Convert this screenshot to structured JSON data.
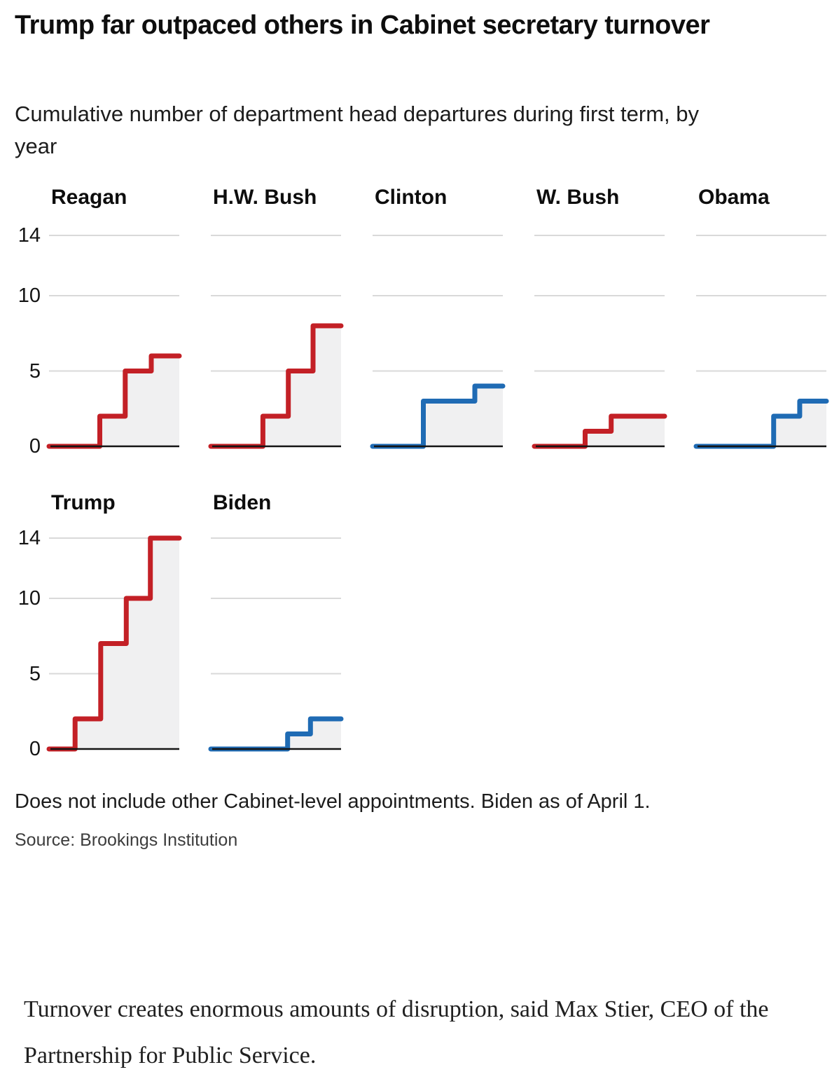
{
  "article": {
    "quote": "Turnover creates enormous amounts of disruption, said Max Stier, CEO of the Partnership for Public Service."
  },
  "chart_data": {
    "type": "step-area-small-multiples",
    "title": "Trump far outpaced others in Cabinet secretary turnover",
    "subtitle": "Cumulative number of department head departures during first term, by year",
    "note": "Does not include other Cabinet-level appointments. Biden as of April 1.",
    "source": "Source: Brookings Institution",
    "ylabel": "",
    "xlabel": "",
    "y_ticks": [
      14,
      10,
      5,
      0
    ],
    "ylim": [
      0,
      15
    ],
    "grid": "horizontal only, light gray; black zero baseline per panel",
    "legend_position": "none",
    "colors": {
      "republican": "#c32026",
      "democrat": "#1f6bb4",
      "area_fill": "#f0f0f1",
      "gridline": "#d9d9d9",
      "axis": "#141414"
    },
    "panels": [
      {
        "label": "Reagan",
        "party": "republican",
        "final_value": 6,
        "steps": [
          [
            0.39,
            2
          ],
          [
            0.585,
            5
          ],
          [
            0.785,
            6
          ]
        ]
      },
      {
        "label": "H.W. Bush",
        "party": "republican",
        "final_value": 8,
        "steps": [
          [
            0.4,
            2
          ],
          [
            0.595,
            5
          ],
          [
            0.785,
            8
          ]
        ]
      },
      {
        "label": "Clinton",
        "party": "democrat",
        "final_value": 4,
        "steps": [
          [
            0.39,
            3
          ],
          [
            0.785,
            4
          ]
        ]
      },
      {
        "label": "W. Bush",
        "party": "republican",
        "final_value": 2,
        "steps": [
          [
            0.39,
            1
          ],
          [
            0.59,
            2
          ]
        ]
      },
      {
        "label": "Obama",
        "party": "democrat",
        "final_value": 3,
        "steps": [
          [
            0.595,
            2
          ],
          [
            0.795,
            3
          ]
        ]
      },
      {
        "label": "Trump",
        "party": "republican",
        "final_value": 14,
        "steps": [
          [
            0.2,
            2
          ],
          [
            0.397,
            7
          ],
          [
            0.593,
            10
          ],
          [
            0.778,
            14
          ]
        ]
      },
      {
        "label": "Biden",
        "party": "democrat",
        "final_value": 2,
        "steps": [
          [
            0.59,
            1
          ],
          [
            0.765,
            2
          ]
        ]
      }
    ]
  }
}
